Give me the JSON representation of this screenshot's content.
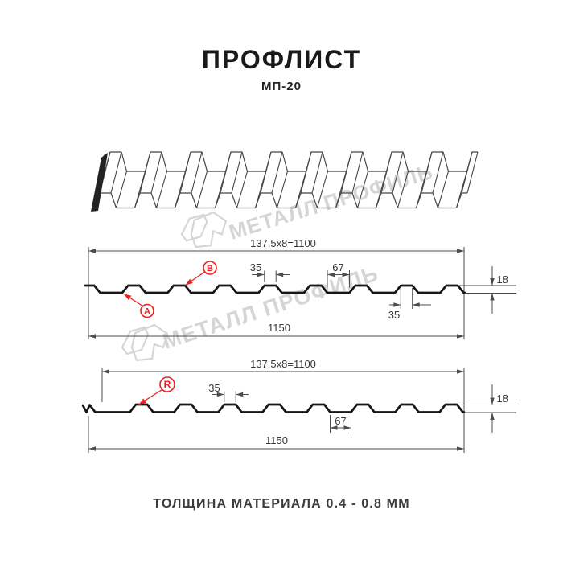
{
  "header": {
    "title": "ПРОФЛИСТ",
    "subtitle": "МП-20"
  },
  "watermark": {
    "text": "МЕТАЛЛ ПРОФИЛЬ"
  },
  "diagram": {
    "profile_top": {
      "modulation": "137,5x8=1100",
      "overall_width": "1150",
      "crest_width_top": "35",
      "valley_width": "67",
      "height": "18",
      "crest_width_bottom": "35",
      "marker_a": "A",
      "marker_b": "B"
    },
    "profile_bottom": {
      "modulation": "137.5x8=1100",
      "overall_width": "1150",
      "crest_width": "35",
      "valley_width": "67",
      "height": "18",
      "marker_r": "R"
    }
  },
  "footer": {
    "note": "ТОЛЩИНА МАТЕРИАЛА 0.4 - 0.8 ММ"
  },
  "colors": {
    "red": "#ee1c1c",
    "ink": "#161616",
    "dim_line": "#4d4d4d",
    "dim_text": "#383838",
    "sheet_line": "#454545",
    "watermark": "#d5d5d5"
  }
}
